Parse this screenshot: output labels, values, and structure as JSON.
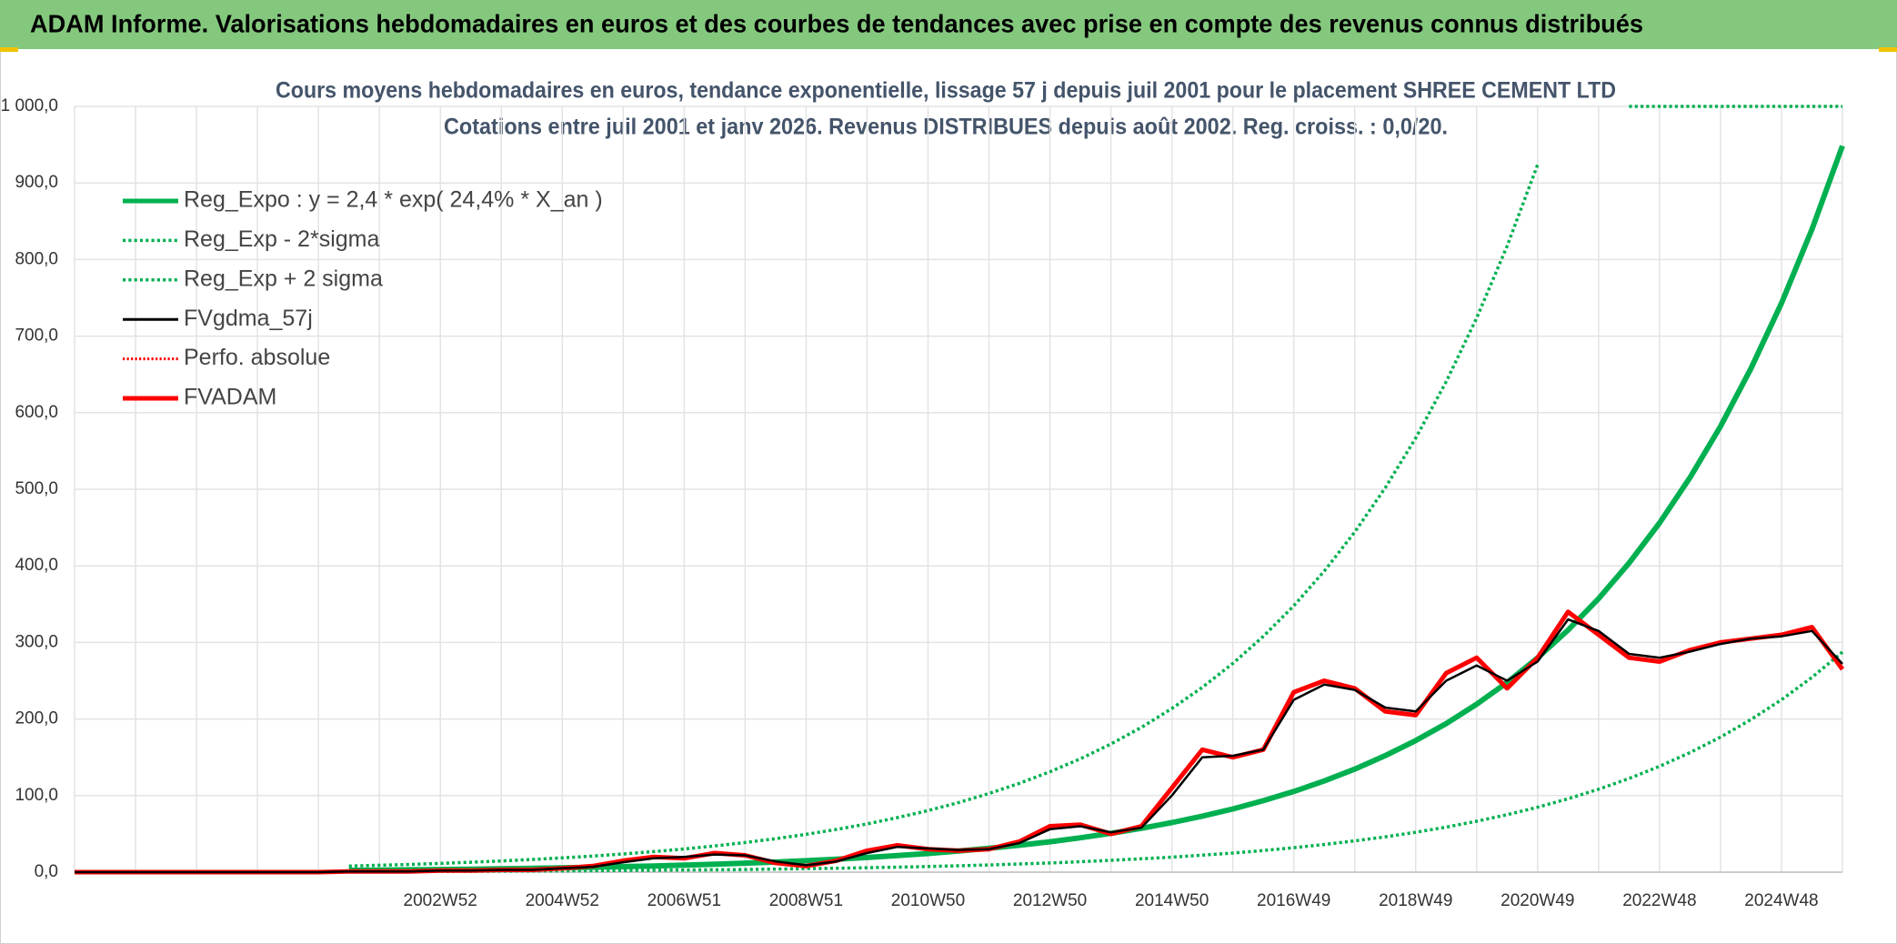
{
  "header": {
    "title": "ADAM Informe. Valorisations hebdomadaires en euros et des courbes de tendances avec prise en compte des revenus connus distribués"
  },
  "chart_data": {
    "type": "line",
    "title": "Cours moyens hebdomadaires en euros, tendance exponentielle, lissage 57 j depuis juil 2001 pour le placement SHREE CEMENT LTD",
    "subtitle": "Cotations entre juil 2001 et janv 2026. Revenus DISTRIBUES depuis août 2002. Reg. croiss. : 0,0/20.",
    "categories": [
      null,
      null,
      null,
      null,
      null,
      null,
      null,
      null,
      null,
      null,
      null,
      null,
      "2002W52",
      null,
      null,
      null,
      "2004W52",
      null,
      null,
      null,
      "2006W51",
      null,
      null,
      null,
      "2008W51",
      null,
      null,
      null,
      "2010W50",
      null,
      null,
      null,
      "2012W50",
      null,
      null,
      null,
      "2014W50",
      null,
      null,
      null,
      "2016W49",
      null,
      null,
      null,
      "2018W49",
      null,
      null,
      null,
      "2020W49",
      null,
      null,
      null,
      "2022W48",
      null,
      null,
      null,
      "2024W48",
      null,
      null
    ],
    "ylim": [
      0,
      1000
    ],
    "yticks": [
      {
        "value": 0,
        "label": "0,0"
      },
      {
        "value": 100,
        "label": "100,0"
      },
      {
        "value": 200,
        "label": "200,0"
      },
      {
        "value": 300,
        "label": "300,0"
      },
      {
        "value": 400,
        "label": "400,0"
      },
      {
        "value": 500,
        "label": "500,0"
      },
      {
        "value": 600,
        "label": "600,0"
      },
      {
        "value": 700,
        "label": "700,0"
      },
      {
        "value": 800,
        "label": "800,0"
      },
      {
        "value": 900,
        "label": "900,0"
      },
      {
        "value": 1000,
        "label": "1 000,0"
      }
    ],
    "grid": true,
    "legend": "upper left",
    "series": [
      {
        "name": "Reg_Expo : y = 2,4 * exp( 24,4% *  X_an )",
        "color": "#00b050",
        "style": "solid",
        "width": 6,
        "values": [
          null,
          null,
          null,
          null,
          null,
          null,
          null,
          null,
          null,
          2.4,
          2.7,
          3.1,
          3.5,
          3.9,
          4.4,
          5.0,
          5.6,
          6.4,
          7.2,
          8.1,
          9.2,
          10.4,
          11.7,
          13.2,
          15.0,
          16.9,
          19.1,
          21.6,
          24.4,
          27.5,
          31.1,
          35.2,
          39.7,
          44.9,
          50.7,
          57.3,
          64.7,
          73.1,
          82.6,
          93.3,
          105.4,
          119.1,
          134.6,
          152.1,
          171.8,
          194.1,
          219.3,
          247.8,
          279.9,
          316.2,
          357.3,
          403.7,
          456.0,
          515.3,
          582.1,
          657.7,
          743.1,
          839.5,
          948.5
        ]
      },
      {
        "name": "Reg_Exp - 2*sigma",
        "color": "#00b050",
        "style": "dotted",
        "width": 3.5,
        "values": [
          null,
          null,
          null,
          null,
          null,
          null,
          null,
          null,
          null,
          0.7,
          0.8,
          0.9,
          1.1,
          1.2,
          1.3,
          1.5,
          1.7,
          1.9,
          2.2,
          2.5,
          2.8,
          3.1,
          3.5,
          4.0,
          4.5,
          5.1,
          5.8,
          6.5,
          7.4,
          8.3,
          9.4,
          10.7,
          12.0,
          13.6,
          15.4,
          17.4,
          19.6,
          22.2,
          25.0,
          28.3,
          31.9,
          36.1,
          40.8,
          46.1,
          52.1,
          58.8,
          66.5,
          75.1,
          84.8,
          95.8,
          108.3,
          122.3,
          138.2,
          156.2,
          176.4,
          199.3,
          225.2,
          254.4,
          287.4
        ]
      },
      {
        "name": "Reg_Exp + 2 sigma",
        "color": "#00b050",
        "style": "dotted",
        "width": 3.5,
        "values": [
          null,
          null,
          null,
          null,
          null,
          null,
          null,
          null,
          null,
          7.9,
          9.0,
          10.1,
          11.4,
          12.9,
          14.6,
          16.5,
          18.6,
          21.0,
          23.7,
          26.8,
          30.3,
          34.2,
          38.7,
          43.7,
          49.4,
          55.8,
          63.0,
          71.2,
          80.4,
          90.9,
          102.7,
          116.0,
          131.1,
          148.1,
          167.3,
          189.1,
          213.6,
          241.3,
          272.6,
          308.0,
          347.9,
          393.1,
          444.2,
          501.8,
          567.0,
          640.6,
          723.8,
          817.7,
          923.9,
          null,
          null,
          1000,
          1000,
          1000,
          1000,
          1000,
          1000,
          1000,
          1000
        ]
      },
      {
        "name": "FVgdma_57j",
        "color": "#000000",
        "style": "solid",
        "width": 2.5,
        "values": [
          0,
          0,
          0,
          0,
          0,
          0,
          0,
          0,
          0,
          1,
          1,
          1,
          2,
          2,
          3,
          3,
          5,
          7,
          13,
          18,
          20,
          23,
          22,
          14,
          9,
          14,
          25,
          33,
          31,
          29,
          30,
          38,
          56,
          60,
          52,
          58,
          100,
          150,
          152,
          160,
          225,
          245,
          238,
          215,
          210,
          250,
          270,
          250,
          275,
          330,
          315,
          285,
          280,
          288,
          298,
          305,
          308,
          315,
          272
        ]
      },
      {
        "name": "Perfo. absolue",
        "color": "#ff0000",
        "style": "dotted",
        "width": 2.5,
        "values": [
          0,
          0,
          0,
          0,
          0,
          0,
          0,
          0,
          0,
          1,
          1,
          1,
          2,
          2,
          3,
          3,
          5,
          8,
          15,
          20,
          18,
          25,
          22,
          12,
          8,
          15,
          28,
          35,
          30,
          28,
          30,
          40,
          60,
          62,
          50,
          60,
          110,
          160,
          150,
          160,
          235,
          250,
          240,
          210,
          205,
          260,
          280,
          240,
          280,
          340,
          310,
          280,
          275,
          290,
          300,
          305,
          310,
          320,
          265
        ]
      },
      {
        "name": "FVADAM",
        "color": "#ff0000",
        "style": "solid",
        "width": 5,
        "values": [
          0,
          0,
          0,
          0,
          0,
          0,
          0,
          0,
          0,
          1,
          1,
          1,
          2,
          2,
          3,
          3,
          5,
          8,
          15,
          20,
          18,
          25,
          22,
          12,
          8,
          15,
          28,
          35,
          30,
          28,
          30,
          40,
          60,
          62,
          50,
          60,
          110,
          160,
          150,
          160,
          235,
          250,
          240,
          210,
          205,
          260,
          280,
          240,
          280,
          340,
          310,
          280,
          275,
          290,
          300,
          305,
          310,
          320,
          265
        ]
      }
    ]
  }
}
